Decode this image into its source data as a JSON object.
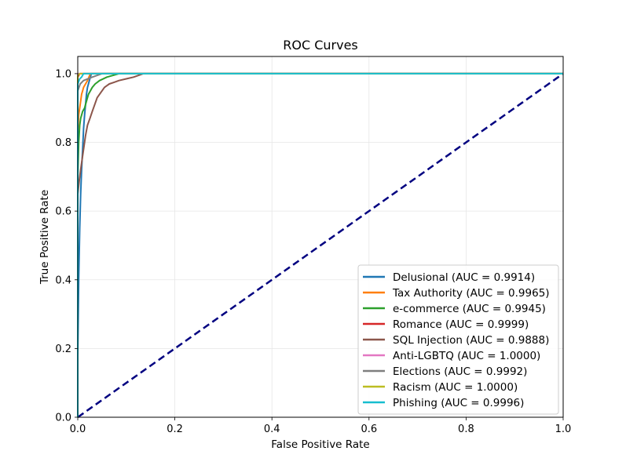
{
  "chart_data": {
    "type": "line",
    "title": "ROC Curves",
    "xlabel": "False Positive Rate",
    "ylabel": "True Positive Rate",
    "xlim": [
      0.0,
      1.0
    ],
    "ylim": [
      0.0,
      1.05
    ],
    "grid": true,
    "legend_position": "lower-right",
    "x_ticks": [
      "0.0",
      "0.2",
      "0.4",
      "0.6",
      "0.8",
      "1.0"
    ],
    "y_ticks": [
      "0.0",
      "0.2",
      "0.4",
      "0.6",
      "0.8",
      "1.0"
    ],
    "series": [
      {
        "name": "Delusional (AUC = 0.9914)",
        "color": "#1f77b4",
        "x": [
          0,
          0,
          0.002,
          0.004,
          0.006,
          0.008,
          0.01,
          0.012,
          0.014,
          0.016,
          0.018,
          0.02,
          0.024,
          0.028,
          1.0
        ],
        "y": [
          0,
          0.18,
          0.4,
          0.55,
          0.65,
          0.72,
          0.78,
          0.84,
          0.88,
          0.91,
          0.94,
          0.96,
          0.98,
          1.0,
          1.0
        ]
      },
      {
        "name": "Tax Authority (AUC = 0.9965)",
        "color": "#ff7f0e",
        "x": [
          0,
          0,
          0.002,
          0.004,
          0.006,
          0.008,
          0.01,
          0.012,
          0.016,
          0.02,
          0.026,
          1.0
        ],
        "y": [
          0,
          0.82,
          0.88,
          0.9,
          0.92,
          0.94,
          0.95,
          0.96,
          0.97,
          0.98,
          1.0,
          1.0
        ]
      },
      {
        "name": "e-commerce (AUC = 0.9945)",
        "color": "#2ca02c",
        "x": [
          0,
          0,
          0.002,
          0.004,
          0.006,
          0.01,
          0.014,
          0.018,
          0.022,
          0.026,
          0.03,
          0.036,
          0.045,
          0.06,
          0.085,
          1.0
        ],
        "y": [
          0,
          0.7,
          0.8,
          0.85,
          0.87,
          0.89,
          0.9,
          0.92,
          0.94,
          0.95,
          0.96,
          0.97,
          0.98,
          0.99,
          1.0,
          1.0
        ]
      },
      {
        "name": "Romance (AUC = 0.9999)",
        "color": "#d62728",
        "x": [
          0,
          0,
          0.004,
          1.0
        ],
        "y": [
          0,
          0.99,
          1.0,
          1.0
        ]
      },
      {
        "name": "SQL Injection (AUC = 0.9888)",
        "color": "#8c564b",
        "x": [
          0,
          0,
          0.004,
          0.008,
          0.012,
          0.016,
          0.02,
          0.025,
          0.03,
          0.035,
          0.04,
          0.045,
          0.05,
          0.055,
          0.06,
          0.065,
          0.075,
          0.085,
          0.1,
          0.115,
          0.135,
          1.0
        ],
        "y": [
          0,
          0.65,
          0.7,
          0.74,
          0.78,
          0.82,
          0.85,
          0.87,
          0.89,
          0.91,
          0.93,
          0.94,
          0.95,
          0.96,
          0.965,
          0.97,
          0.975,
          0.98,
          0.985,
          0.99,
          1.0,
          1.0
        ]
      },
      {
        "name": "Anti-LGBTQ (AUC = 1.0000)",
        "color": "#e377c2",
        "x": [
          0,
          0,
          1.0
        ],
        "y": [
          0,
          1.0,
          1.0
        ]
      },
      {
        "name": "Elections (AUC = 0.9992)",
        "color": "#7f7f7f",
        "x": [
          0,
          0,
          0.005,
          0.012,
          0.03,
          0.05,
          1.0
        ],
        "y": [
          0,
          0.95,
          0.97,
          0.98,
          0.99,
          1.0,
          1.0
        ]
      },
      {
        "name": "Racism (AUC = 1.0000)",
        "color": "#bcbd22",
        "x": [
          0,
          0,
          0.004,
          1.0
        ],
        "y": [
          0,
          0.995,
          1.0,
          1.0
        ]
      },
      {
        "name": "Phishing (AUC = 0.9996)",
        "color": "#17becf",
        "x": [
          0,
          0,
          0.004,
          0.008,
          0.012,
          1.0
        ],
        "y": [
          0,
          0.97,
          0.985,
          0.99,
          1.0,
          1.0
        ]
      }
    ],
    "reference_line": {
      "x": [
        0,
        1
      ],
      "y": [
        0,
        1
      ],
      "color": "#000080",
      "style": "dashed"
    }
  }
}
